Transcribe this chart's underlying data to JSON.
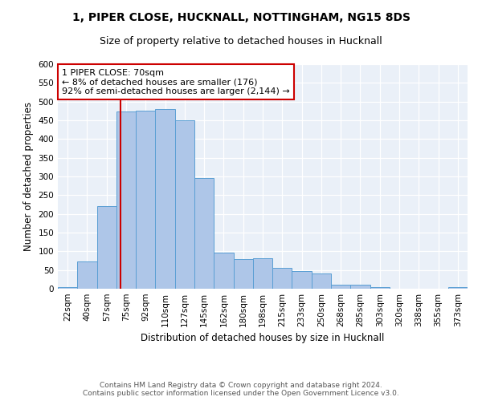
{
  "title_line1": "1, PIPER CLOSE, HUCKNALL, NOTTINGHAM, NG15 8DS",
  "title_line2": "Size of property relative to detached houses in Hucknall",
  "xlabel": "Distribution of detached houses by size in Hucknall",
  "ylabel": "Number of detached properties",
  "categories": [
    "22sqm",
    "40sqm",
    "57sqm",
    "75sqm",
    "92sqm",
    "110sqm",
    "127sqm",
    "145sqm",
    "162sqm",
    "180sqm",
    "198sqm",
    "215sqm",
    "233sqm",
    "250sqm",
    "268sqm",
    "285sqm",
    "303sqm",
    "320sqm",
    "338sqm",
    "355sqm",
    "373sqm"
  ],
  "values": [
    4,
    72,
    220,
    473,
    476,
    480,
    449,
    295,
    97,
    80,
    82,
    55,
    48,
    41,
    11,
    11,
    5,
    1,
    0,
    0,
    4
  ],
  "bar_color": "#aec6e8",
  "bar_edge_color": "#5a9fd4",
  "vline_color": "#cc0000",
  "annotation_text": "1 PIPER CLOSE: 70sqm\n← 8% of detached houses are smaller (176)\n92% of semi-detached houses are larger (2,144) →",
  "annotation_box_color": "#ffffff",
  "annotation_box_edge_color": "#cc0000",
  "ylim": [
    0,
    600
  ],
  "yticks": [
    0,
    50,
    100,
    150,
    200,
    250,
    300,
    350,
    400,
    450,
    500,
    550,
    600
  ],
  "bg_color": "#eaf0f8",
  "footer_line1": "Contains HM Land Registry data © Crown copyright and database right 2024.",
  "footer_line2": "Contains public sector information licensed under the Open Government Licence v3.0.",
  "title_fontsize": 10,
  "subtitle_fontsize": 9,
  "ylabel_text": "Number of detached properties",
  "tick_fontsize": 7.5,
  "annotation_fontsize": 8
}
